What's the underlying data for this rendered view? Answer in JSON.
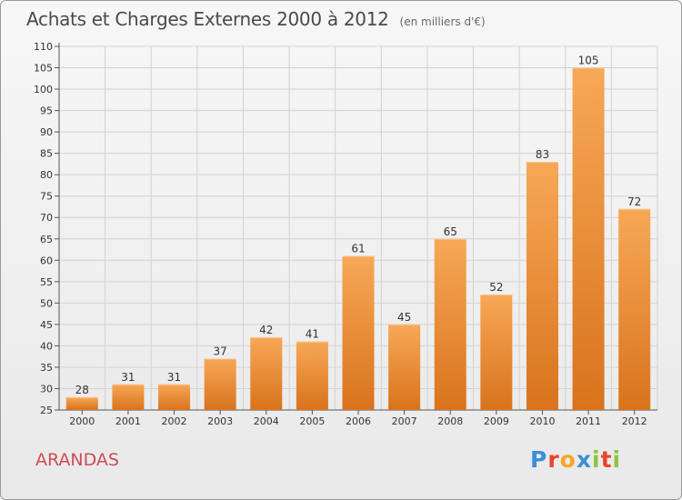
{
  "chart_data": {
    "type": "bar",
    "title": "Achats et Charges Externes 2000 à 2012",
    "subtitle": "(en milliers d'€)",
    "categories": [
      "2000",
      "2001",
      "2002",
      "2003",
      "2004",
      "2005",
      "2006",
      "2007",
      "2008",
      "2009",
      "2010",
      "2011",
      "2012"
    ],
    "values": [
      28,
      31,
      31,
      37,
      42,
      41,
      61,
      45,
      65,
      52,
      83,
      105,
      72
    ],
    "ylim": [
      25,
      110
    ],
    "yticks": [
      25,
      30,
      35,
      40,
      45,
      50,
      55,
      60,
      65,
      70,
      75,
      80,
      85,
      90,
      95,
      100,
      105,
      110
    ],
    "grid": true,
    "bar_color": "#f0923a"
  },
  "footer": {
    "region": "ARANDAS",
    "brand": "Proxiti",
    "brand_colors": [
      "#3a8fd9",
      "#e8452c",
      "#f5a623",
      "#3a8fd9",
      "#8cc63f",
      "#e8452c",
      "#8cc63f"
    ]
  }
}
